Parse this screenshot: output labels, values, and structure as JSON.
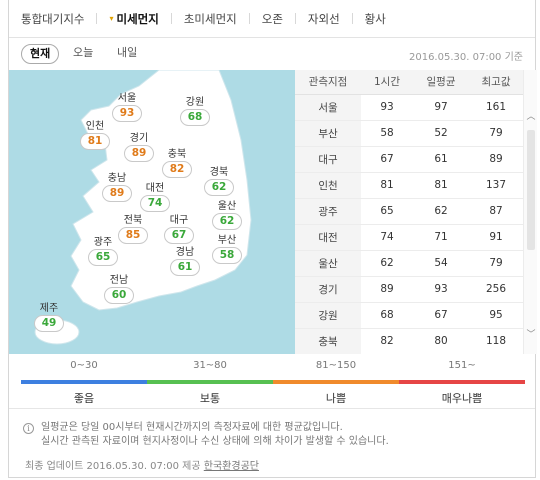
{
  "tabs": [
    {
      "label": "통합대기지수",
      "active": false
    },
    {
      "label": "미세먼지",
      "active": true
    },
    {
      "label": "초미세먼지",
      "active": false
    },
    {
      "label": "오존",
      "active": false
    },
    {
      "label": "자외선",
      "active": false
    },
    {
      "label": "황사",
      "active": false
    }
  ],
  "subtabs": {
    "now": "현재",
    "today": "오늘",
    "tomorrow": "내일"
  },
  "datetime": "2016.05.30. 07:00 기준",
  "map": {
    "seoul": {
      "name": "서울",
      "value": "93",
      "level": "normal"
    },
    "gangwon": {
      "name": "강원",
      "value": "68",
      "level": "good"
    },
    "incheon": {
      "name": "인천",
      "value": "81",
      "level": "normal"
    },
    "gyeonggi": {
      "name": "경기",
      "value": "89",
      "level": "normal"
    },
    "chungbuk": {
      "name": "충북",
      "value": "82",
      "level": "normal"
    },
    "chungnam": {
      "name": "충남",
      "value": "89",
      "level": "normal"
    },
    "daejeon": {
      "name": "대전",
      "value": "74",
      "level": "good"
    },
    "gyeongbuk": {
      "name": "경북",
      "value": "62",
      "level": "good"
    },
    "ulsan": {
      "name": "울산",
      "value": "62",
      "level": "good"
    },
    "jeonbuk": {
      "name": "전북",
      "value": "85",
      "level": "normal"
    },
    "daegu": {
      "name": "대구",
      "value": "67",
      "level": "good"
    },
    "gwangju": {
      "name": "광주",
      "value": "65",
      "level": "good"
    },
    "gyeongnam": {
      "name": "경남",
      "value": "61",
      "level": "good"
    },
    "busan": {
      "name": "부산",
      "value": "58",
      "level": "good"
    },
    "jeonnam": {
      "name": "전남",
      "value": "60",
      "level": "good"
    },
    "jeju": {
      "name": "제주",
      "value": "49",
      "level": "good"
    }
  },
  "table": {
    "headers": [
      "관측지점",
      "1시간",
      "일평균",
      "최고값"
    ],
    "rows": [
      [
        "서울",
        "93",
        "97",
        "161"
      ],
      [
        "부산",
        "58",
        "52",
        "79"
      ],
      [
        "대구",
        "67",
        "61",
        "89"
      ],
      [
        "인천",
        "81",
        "81",
        "137"
      ],
      [
        "광주",
        "65",
        "62",
        "87"
      ],
      [
        "대전",
        "74",
        "71",
        "91"
      ],
      [
        "울산",
        "62",
        "54",
        "79"
      ],
      [
        "경기",
        "89",
        "93",
        "256"
      ],
      [
        "강원",
        "68",
        "67",
        "95"
      ],
      [
        "충북",
        "82",
        "80",
        "118"
      ]
    ]
  },
  "legend": [
    {
      "range": "0~30",
      "label": "좋음",
      "color": "#3d7fe0"
    },
    {
      "range": "31~80",
      "label": "보통",
      "color": "#57c051"
    },
    {
      "range": "81~150",
      "label": "나쁨",
      "color": "#f08a2c"
    },
    {
      "range": "151~",
      "label": "매우나쁨",
      "color": "#e64545"
    }
  ],
  "colors": {
    "good": "#3aa83a",
    "normal": "#e07b1a",
    "land": "#ffffff",
    "sea": "#aedbe5"
  },
  "notes": {
    "line1": "일평균은 당일 00시부터 현재시간까지의 측정자료에 대한 평균값입니다.",
    "line2": "실시간 관측된 자료이며 현지사정이나 수신 상태에 의해 차이가 발생할 수 있습니다.",
    "update_prefix": "최종 업데이트 2016.05.30. 07:00 제공",
    "provider": "한국환경공단"
  }
}
